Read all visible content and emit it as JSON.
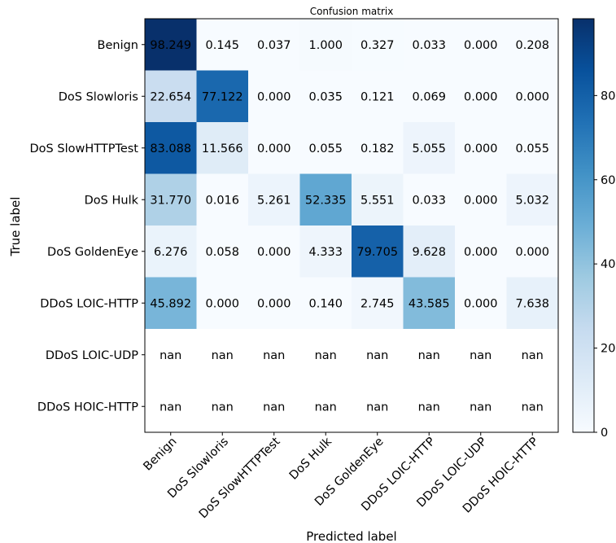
{
  "chart_data": {
    "type": "heatmap",
    "title": "Confusion matrix",
    "xlabel": "Predicted label",
    "ylabel": "True label",
    "row_labels": [
      "Benign",
      "DoS Slowloris",
      "DoS SlowHTTPTest",
      "DoS Hulk",
      "DoS GoldenEye",
      "DDoS LOIC-HTTP",
      "DDoS LOIC-UDP",
      "DDoS HOIC-HTTP"
    ],
    "col_labels": [
      "Benign",
      "DoS Slowloris",
      "DoS SlowHTTPTest",
      "DoS Hulk",
      "DoS GoldenEye",
      "DDoS LOIC-HTTP",
      "DDoS LOIC-UDP",
      "DDoS HOIC-HTTP"
    ],
    "values": [
      [
        "98.249",
        "0.145",
        "0.037",
        "1.000",
        "0.327",
        "0.033",
        "0.000",
        "0.208"
      ],
      [
        "22.654",
        "77.122",
        "0.000",
        "0.035",
        "0.121",
        "0.069",
        "0.000",
        "0.000"
      ],
      [
        "83.088",
        "11.566",
        "0.000",
        "0.055",
        "0.182",
        "5.055",
        "0.000",
        "0.055"
      ],
      [
        "31.770",
        "0.016",
        "5.261",
        "52.335",
        "5.551",
        "0.033",
        "0.000",
        "5.032"
      ],
      [
        "6.276",
        "0.058",
        "0.000",
        "4.333",
        "79.705",
        "9.628",
        "0.000",
        "0.000"
      ],
      [
        "45.892",
        "0.000",
        "0.000",
        "0.140",
        "2.745",
        "43.585",
        "0.000",
        "7.638"
      ],
      [
        "nan",
        "nan",
        "nan",
        "nan",
        "nan",
        "nan",
        "nan",
        "nan"
      ],
      [
        "nan",
        "nan",
        "nan",
        "nan",
        "nan",
        "nan",
        "nan",
        "nan"
      ]
    ],
    "colorbar": {
      "range": [
        0,
        98.249
      ],
      "ticks": [
        "0",
        "20",
        "40",
        "60",
        "80"
      ],
      "colormap": "Blues",
      "low_color": "#f7fbff",
      "high_color": "#08306b"
    }
  }
}
